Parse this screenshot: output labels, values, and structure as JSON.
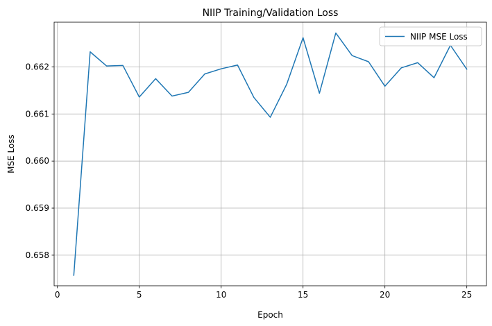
{
  "chart_data": {
    "type": "line",
    "title": "NIIP Training/Validation Loss",
    "xlabel": "Epoch",
    "ylabel": "MSE Loss",
    "xlim": [
      -0.2,
      26.2
    ],
    "ylim": [
      0.65735,
      0.66295
    ],
    "xticks": [
      0,
      5,
      10,
      15,
      20,
      25
    ],
    "xtick_labels": [
      "0",
      "5",
      "10",
      "15",
      "20",
      "25"
    ],
    "yticks": [
      0.658,
      0.659,
      0.66,
      0.661,
      0.662
    ],
    "ytick_labels": [
      "0.658",
      "0.659",
      "0.660",
      "0.661",
      "0.662"
    ],
    "grid": true,
    "legend": {
      "position": "top-right"
    },
    "series": [
      {
        "name": "NIIP MSE Loss",
        "color": "#1f77b4",
        "x": [
          1,
          2,
          3,
          4,
          5,
          6,
          7,
          8,
          9,
          10,
          11,
          12,
          13,
          14,
          15,
          16,
          17,
          18,
          19,
          20,
          21,
          22,
          23,
          24,
          25
        ],
        "y": [
          0.65757,
          0.66232,
          0.66202,
          0.66203,
          0.66136,
          0.66175,
          0.66138,
          0.66146,
          0.66185,
          0.66196,
          0.66204,
          0.66135,
          0.66093,
          0.66163,
          0.66262,
          0.66144,
          0.66272,
          0.66224,
          0.66211,
          0.66159,
          0.66198,
          0.66209,
          0.66177,
          0.66246,
          0.66195
        ]
      }
    ]
  }
}
